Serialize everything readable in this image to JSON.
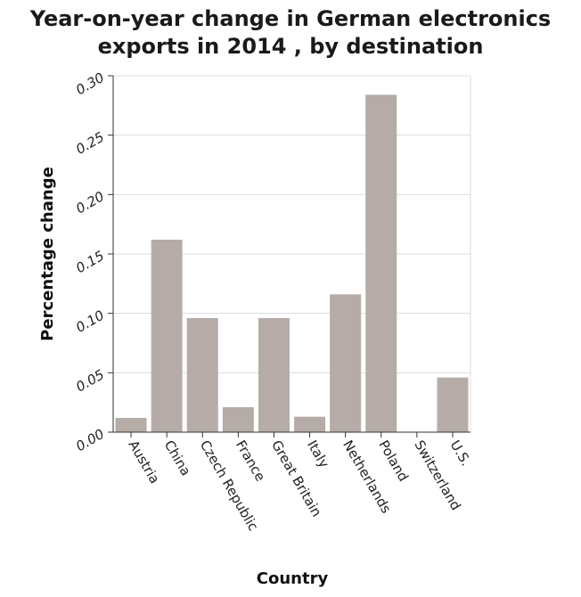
{
  "chart_data": {
    "type": "bar",
    "title": "Year-on-year change in German electronics exports in 2014 , by destination",
    "title_lines": [
      "Year-on-year change in German electronics",
      "exports in 2014 , by destination"
    ],
    "xlabel": "Country",
    "ylabel": "Percentage change",
    "categories": [
      "Austria",
      "China",
      "Czech Republic",
      "France",
      "Great Britain",
      "Italy",
      "Netherlands",
      "Poland",
      "Switzerland",
      "U.S."
    ],
    "values": [
      0.012,
      0.162,
      0.096,
      0.021,
      0.096,
      0.013,
      0.116,
      0.284,
      0.0,
      0.046
    ],
    "ylim": [
      0,
      0.3
    ],
    "yticks": [
      "0.00",
      "0.05",
      "0.10",
      "0.15",
      "0.20",
      "0.25",
      "0.30"
    ],
    "grid": true,
    "bar_color": "#b5aca7",
    "grid_color": "#dcdcdc"
  }
}
